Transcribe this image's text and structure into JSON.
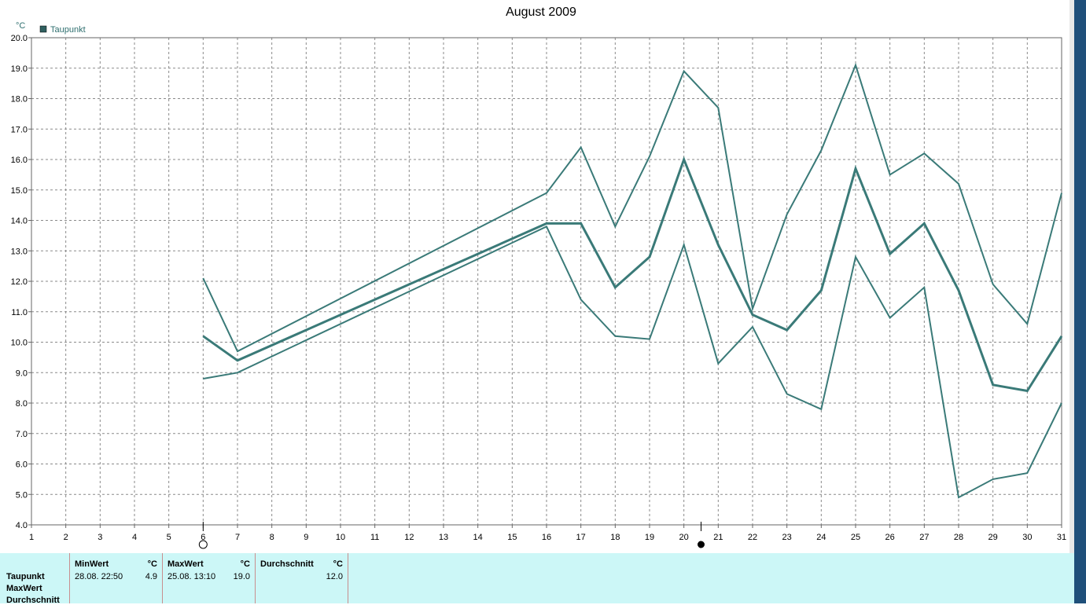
{
  "chart_data": {
    "type": "line",
    "title": "August 2009",
    "yunit": "°C",
    "ylim": [
      4.0,
      20.0
    ],
    "xlim": [
      1,
      31
    ],
    "x_ticks": [
      1,
      2,
      3,
      4,
      5,
      6,
      7,
      8,
      9,
      10,
      11,
      12,
      13,
      14,
      15,
      16,
      17,
      18,
      19,
      20,
      21,
      22,
      23,
      24,
      25,
      26,
      27,
      28,
      29,
      30,
      31
    ],
    "y_ticks": [
      "4.0",
      "5.0",
      "6.0",
      "7.0",
      "8.0",
      "9.0",
      "10.0",
      "11.0",
      "12.0",
      "13.0",
      "14.0",
      "15.0",
      "16.0",
      "17.0",
      "18.0",
      "19.0",
      "20.0"
    ],
    "grid": true,
    "legend": {
      "position": "top-left",
      "entries": [
        "Taupunkt"
      ]
    },
    "color": "#3a7a78",
    "series": [
      {
        "role": "max",
        "points": [
          [
            6,
            12.1
          ],
          [
            7,
            9.7
          ],
          [
            16,
            14.9
          ],
          [
            17,
            16.4
          ],
          [
            18,
            13.8
          ],
          [
            19,
            16.1
          ],
          [
            20,
            18.9
          ],
          [
            21,
            17.7
          ],
          [
            22,
            11.1
          ],
          [
            23,
            14.2
          ],
          [
            24,
            16.3
          ],
          [
            25,
            19.1
          ],
          [
            26,
            15.5
          ],
          [
            27,
            16.2
          ],
          [
            28,
            15.2
          ],
          [
            29,
            11.9
          ],
          [
            30,
            10.6
          ],
          [
            31,
            14.9
          ]
        ]
      },
      {
        "role": "avg",
        "points": [
          [
            6,
            10.2
          ],
          [
            7,
            9.4
          ],
          [
            16,
            13.9
          ],
          [
            17,
            13.9
          ],
          [
            18,
            11.8
          ],
          [
            19,
            12.8
          ],
          [
            20,
            16.0
          ],
          [
            21,
            13.2
          ],
          [
            22,
            10.9
          ],
          [
            23,
            10.4
          ],
          [
            24,
            11.7
          ],
          [
            25,
            15.7
          ],
          [
            26,
            12.9
          ],
          [
            27,
            13.9
          ],
          [
            28,
            11.7
          ],
          [
            29,
            8.6
          ],
          [
            30,
            8.4
          ],
          [
            31,
            10.2
          ]
        ]
      },
      {
        "role": "min",
        "points": [
          [
            6,
            8.8
          ],
          [
            7,
            9.0
          ],
          [
            16,
            13.8
          ],
          [
            17,
            11.4
          ],
          [
            18,
            10.2
          ],
          [
            19,
            10.1
          ],
          [
            20,
            13.2
          ],
          [
            21,
            9.3
          ],
          [
            22,
            10.5
          ],
          [
            23,
            8.3
          ],
          [
            24,
            7.8
          ],
          [
            25,
            12.8
          ],
          [
            26,
            10.8
          ],
          [
            27,
            11.8
          ],
          [
            28,
            4.9
          ],
          [
            29,
            5.5
          ],
          [
            30,
            5.7
          ],
          [
            31,
            8.0
          ]
        ]
      }
    ],
    "moon_markers": [
      {
        "x": 6,
        "phase": "full"
      },
      {
        "x": 20.5,
        "phase": "new"
      }
    ]
  },
  "stats": {
    "row_labels": [
      "Taupunkt",
      "MaxWert",
      "Durchschnitt"
    ],
    "columns": [
      {
        "header": "MinWert",
        "unit": "°C",
        "time": "28.08.  22:50",
        "value": "4.9"
      },
      {
        "header": "MaxWert",
        "unit": "°C",
        "time": "25.08.  13:10",
        "value": "19.0"
      },
      {
        "header": "Durchschnitt",
        "unit": "°C",
        "time": "",
        "value": "12.0"
      }
    ]
  }
}
